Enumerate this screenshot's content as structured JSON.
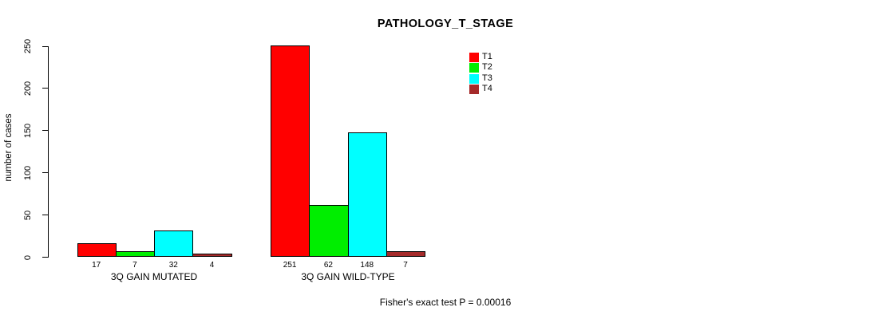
{
  "title": "PATHOLOGY_T_STAGE",
  "footer": "Fisher's exact test P = 0.00016",
  "colors": {
    "t1": "#FF0000",
    "t2": "#00EE00",
    "t3": "#00FFFF",
    "t4": "#A52A2A",
    "axis": "#000000",
    "background": "#FFFFFF"
  },
  "chart_data": {
    "type": "bar",
    "title": "PATHOLOGY_T_STAGE",
    "xlabel": "",
    "ylabel": "number of cases",
    "ylim": [
      0,
      250
    ],
    "yticks": [
      0,
      50,
      100,
      150,
      200,
      250
    ],
    "grid": false,
    "legend_position": "top-right",
    "categories": [
      "3Q GAIN MUTATED",
      "3Q GAIN WILD-TYPE"
    ],
    "series": [
      {
        "name": "T1",
        "color": "#FF0000",
        "values": [
          17,
          251
        ]
      },
      {
        "name": "T2",
        "color": "#00EE00",
        "values": [
          7,
          62
        ]
      },
      {
        "name": "T3",
        "color": "#00FFFF",
        "values": [
          32,
          148
        ]
      },
      {
        "name": "T4",
        "color": "#A52A2A",
        "values": [
          4,
          7
        ]
      }
    ],
    "bar_value_labels": [
      [
        17,
        7,
        32,
        4
      ],
      [
        251,
        62,
        148,
        7
      ]
    ],
    "annotation": "Fisher's exact test P = 0.00016"
  }
}
